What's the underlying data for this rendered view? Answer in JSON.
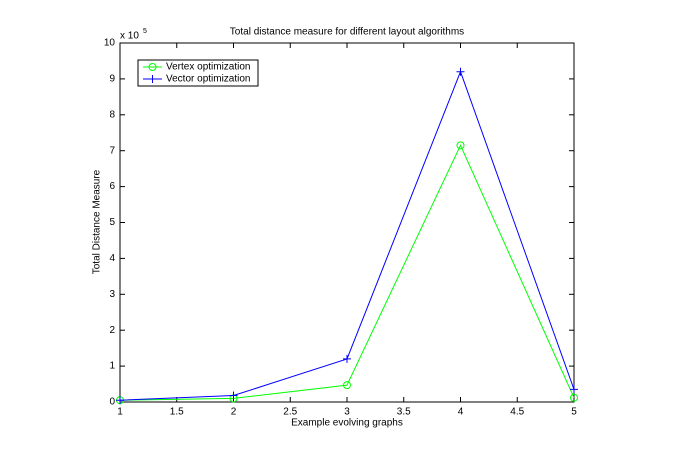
{
  "chart_data": {
    "type": "line",
    "title": "Total distance measure for different layout algorithms",
    "x_label": "Example evolving graphs",
    "y_label": "Total Distance Measure",
    "y_multiplier": {
      "base": "x 10",
      "exponent": "5"
    },
    "x": [
      1,
      2,
      3,
      4,
      5
    ],
    "series": [
      {
        "name": "Vertex optimization",
        "color": "#00ff00",
        "marker": "circle",
        "values": [
          0.05,
          0.1,
          0.47,
          7.15,
          0.12
        ]
      },
      {
        "name": "Vector optimization",
        "color": "#0000ff",
        "marker": "plus",
        "values": [
          0.05,
          0.18,
          1.2,
          9.2,
          0.35
        ]
      }
    ],
    "xlim": [
      1,
      5
    ],
    "xticks": [
      1,
      1.5,
      2,
      2.5,
      3,
      3.5,
      4,
      4.5,
      5
    ],
    "ylim": [
      0,
      10
    ],
    "yticks": [
      0,
      1,
      2,
      3,
      4,
      5,
      6,
      7,
      8,
      9,
      10
    ],
    "grid": false,
    "legend": "upper left"
  }
}
